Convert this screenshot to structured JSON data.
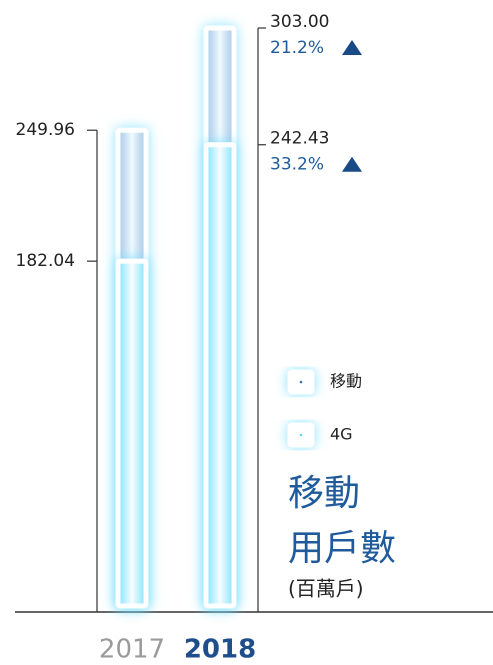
{
  "chart_data": {
    "type": "overlap-bar",
    "title": [
      "移動",
      "用戶數"
    ],
    "subtitle": "(百萬戶)",
    "categories": [
      "2017",
      "2018"
    ],
    "series": [
      {
        "name": "移動",
        "color": "#3a6fb0",
        "values": [
          249.96,
          303.0
        ],
        "value_labels": [
          "249.96",
          "303.00"
        ]
      },
      {
        "name": "4G",
        "color": "#5fd8f8",
        "values": [
          182.04,
          242.43
        ],
        "value_labels": [
          "182.04",
          "242.43"
        ]
      }
    ],
    "annotations": [
      "21.2%",
      "33.2%"
    ],
    "ylim": [
      0,
      303
    ]
  }
}
